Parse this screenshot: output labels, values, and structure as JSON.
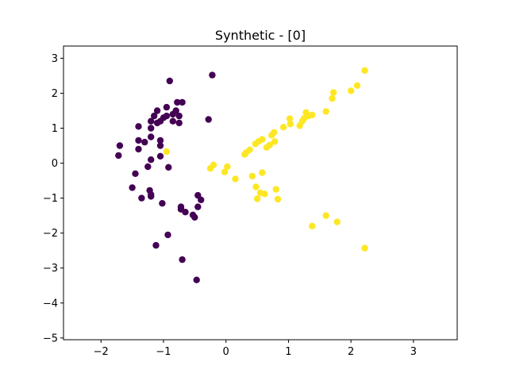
{
  "chart_data": {
    "type": "scatter",
    "title": "Synthetic - [0]",
    "xlabel": "",
    "ylabel": "",
    "xlim": [
      -2.6,
      3.7
    ],
    "ylim": [
      -5.05,
      3.35
    ],
    "x_ticks": [
      -2,
      -1,
      0,
      1,
      2,
      3
    ],
    "x_tick_labels": [
      "−2",
      "−1",
      "0",
      "1",
      "2",
      "3"
    ],
    "y_ticks": [
      -5,
      -4,
      -3,
      -2,
      -1,
      0,
      1,
      2,
      3
    ],
    "y_tick_labels": [
      "−5",
      "−4",
      "−3",
      "−2",
      "−1",
      "0",
      "1",
      "2",
      "3"
    ],
    "grid": false,
    "series": [
      {
        "class": 0,
        "color": "#440154",
        "points": [
          [
            -0.9,
            2.35
          ],
          [
            -0.22,
            2.52
          ],
          [
            -0.78,
            1.74
          ],
          [
            -0.7,
            1.74
          ],
          [
            -1.1,
            1.5
          ],
          [
            -0.95,
            1.6
          ],
          [
            -0.8,
            1.5
          ],
          [
            -1.15,
            1.35
          ],
          [
            -1.2,
            1.2
          ],
          [
            -0.95,
            1.35
          ],
          [
            -1.0,
            1.3
          ],
          [
            -0.85,
            1.4
          ],
          [
            -1.05,
            1.2
          ],
          [
            -1.1,
            1.15
          ],
          [
            -0.75,
            1.35
          ],
          [
            -0.85,
            1.2
          ],
          [
            -0.75,
            1.15
          ],
          [
            -0.28,
            1.25
          ],
          [
            -1.4,
            1.05
          ],
          [
            -1.2,
            1.0
          ],
          [
            -1.2,
            0.75
          ],
          [
            -1.4,
            0.65
          ],
          [
            -1.3,
            0.6
          ],
          [
            -1.05,
            0.65
          ],
          [
            -1.05,
            0.5
          ],
          [
            -1.7,
            0.5
          ],
          [
            -1.4,
            0.4
          ],
          [
            -1.72,
            0.22
          ],
          [
            -1.05,
            0.2
          ],
          [
            -1.2,
            0.1
          ],
          [
            -1.25,
            -0.1
          ],
          [
            -0.92,
            -0.12
          ],
          [
            -1.45,
            -0.3
          ],
          [
            -1.5,
            -0.7
          ],
          [
            -1.22,
            -0.78
          ],
          [
            -1.2,
            -0.9
          ],
          [
            -1.35,
            -1.0
          ],
          [
            -1.2,
            -0.95
          ],
          [
            -0.45,
            -0.92
          ],
          [
            -0.4,
            -1.05
          ],
          [
            -1.02,
            -1.15
          ],
          [
            -0.45,
            -1.25
          ],
          [
            -0.72,
            -1.25
          ],
          [
            -0.72,
            -1.32
          ],
          [
            -0.65,
            -1.4
          ],
          [
            -0.53,
            -1.48
          ],
          [
            -0.5,
            -1.55
          ],
          [
            -0.93,
            -2.05
          ],
          [
            -1.12,
            -2.35
          ],
          [
            -0.7,
            -2.76
          ],
          [
            -0.47,
            -3.34
          ]
        ]
      },
      {
        "class": 1,
        "color": "#fde725",
        "points": [
          [
            2.22,
            2.65
          ],
          [
            2.1,
            2.22
          ],
          [
            2.0,
            2.07
          ],
          [
            1.72,
            2.02
          ],
          [
            1.7,
            1.85
          ],
          [
            1.6,
            1.48
          ],
          [
            1.28,
            1.45
          ],
          [
            1.38,
            1.38
          ],
          [
            1.32,
            1.35
          ],
          [
            1.25,
            1.28
          ],
          [
            1.22,
            1.2
          ],
          [
            1.02,
            1.27
          ],
          [
            1.03,
            1.12
          ],
          [
            1.18,
            1.07
          ],
          [
            0.92,
            1.03
          ],
          [
            0.77,
            0.88
          ],
          [
            0.73,
            0.8
          ],
          [
            0.78,
            0.62
          ],
          [
            0.7,
            0.52
          ],
          [
            0.65,
            0.45
          ],
          [
            0.58,
            0.68
          ],
          [
            0.52,
            0.62
          ],
          [
            0.47,
            0.55
          ],
          [
            0.38,
            0.38
          ],
          [
            0.32,
            0.3
          ],
          [
            0.3,
            0.25
          ],
          [
            -0.95,
            0.33
          ],
          [
            -0.2,
            -0.05
          ],
          [
            -0.25,
            -0.15
          ],
          [
            0.02,
            -0.1
          ],
          [
            -0.02,
            -0.25
          ],
          [
            0.15,
            -0.45
          ],
          [
            0.42,
            -0.37
          ],
          [
            0.58,
            -0.27
          ],
          [
            0.48,
            -0.68
          ],
          [
            0.55,
            -0.85
          ],
          [
            0.62,
            -0.88
          ],
          [
            0.8,
            -0.75
          ],
          [
            0.83,
            -1.03
          ],
          [
            0.5,
            -1.02
          ],
          [
            1.6,
            -1.5
          ],
          [
            1.78,
            -1.68
          ],
          [
            1.38,
            -1.8
          ],
          [
            2.22,
            -2.43
          ]
        ]
      }
    ]
  }
}
